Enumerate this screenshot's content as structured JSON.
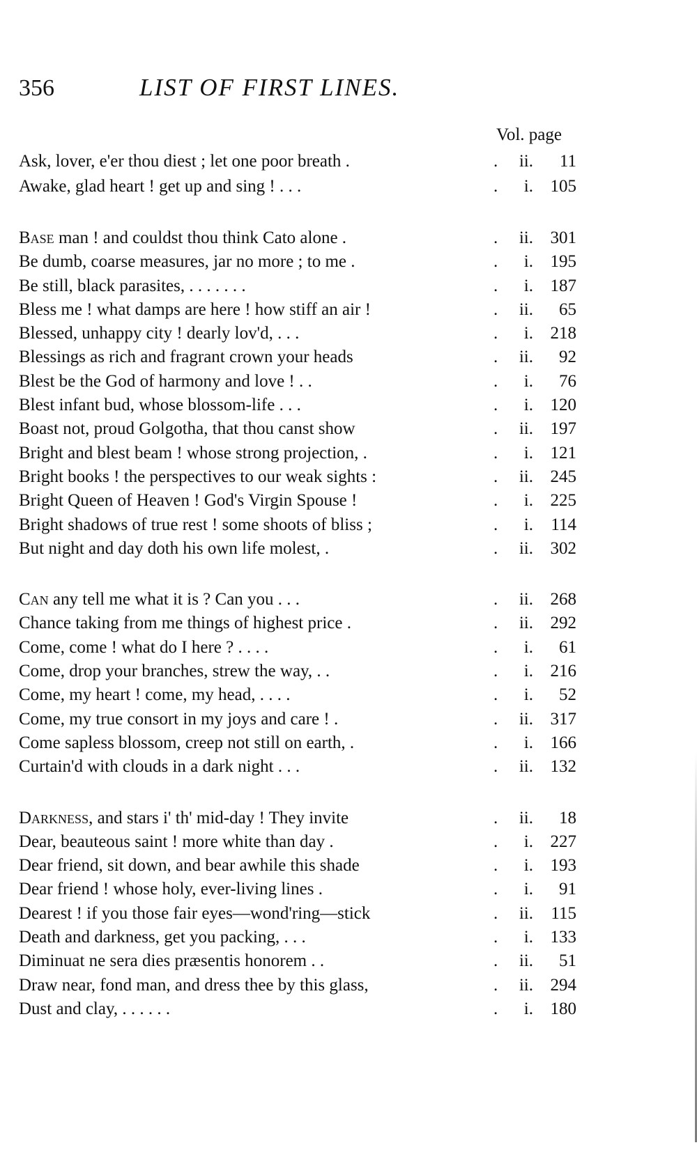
{
  "header": {
    "page_number": "356",
    "title": "LIST OF FIRST LINES."
  },
  "column_header": "Vol. page",
  "groups": [
    [
      {
        "line": "Ask, lover, e'er thou diest ; let one poor breath  .",
        "vol": "ii.",
        "page": "11"
      },
      {
        "line": "Awake, glad heart ! get up and sing !  .      .      .",
        "vol": "i.",
        "page": "105"
      }
    ],
    [
      {
        "line": "Base man ! and couldst thou think Cato alone   .",
        "vol": "ii.",
        "page": "301"
      },
      {
        "line": "Be dumb, coarse measures, jar no more ; to me  .",
        "vol": "i.",
        "page": "195"
      },
      {
        "line": "Be still, black parasites, .      .      .      .      .      .      .",
        "vol": "i.",
        "page": "187"
      },
      {
        "line": "Bless me ! what damps are here ! how stiff an air !",
        "vol": "ii.",
        "page": "65"
      },
      {
        "line": "Blessed, unhappy city ! dearly lov'd,  .      .      .",
        "vol": "i.",
        "page": "218"
      },
      {
        "line": "Blessings as rich and fragrant crown your heads",
        "vol": "ii.",
        "page": "92"
      },
      {
        "line": "Blest be the God of harmony and love !     .      .",
        "vol": "i.",
        "page": "76"
      },
      {
        "line": "Blest infant bud, whose blossom-life   .      .      .",
        "vol": "i.",
        "page": "120"
      },
      {
        "line": "Boast not, proud Golgotha, that thou canst show",
        "vol": "ii.",
        "page": "197"
      },
      {
        "line": "Bright and blest beam ! whose strong projection, .",
        "vol": "i.",
        "page": "121"
      },
      {
        "line": "Bright books ! the perspectives to our weak sights :",
        "vol": "ii.",
        "page": "245"
      },
      {
        "line": "Bright Queen of Heaven ! God's Virgin Spouse !",
        "vol": "i.",
        "page": "225"
      },
      {
        "line": "Bright shadows of true rest ! some shoots of bliss ;",
        "vol": "i.",
        "page": "114"
      },
      {
        "line": "But night and day doth his own life molest,       .",
        "vol": "ii.",
        "page": "302"
      }
    ],
    [
      {
        "line": "Can any tell me what it is ?  Can you .      .      .",
        "vol": "ii.",
        "page": "268"
      },
      {
        "line": "Chance taking from me things of highest price   .",
        "vol": "ii.",
        "page": "292"
      },
      {
        "line": "Come, come ! what do I here ?     .      .      .      .",
        "vol": "i.",
        "page": "61"
      },
      {
        "line": "Come, drop your branches, strew the way,  .      .",
        "vol": "i.",
        "page": "216"
      },
      {
        "line": "Come, my heart ! come, my head, .      .      .      .",
        "vol": "i.",
        "page": "52"
      },
      {
        "line": "Come, my true consort in my joys and care !     .",
        "vol": "ii.",
        "page": "317"
      },
      {
        "line": "Come sapless blossom, creep not still on earth,   .",
        "vol": "i.",
        "page": "166"
      },
      {
        "line": "Curtain'd with clouds in a dark night  .      .      .",
        "vol": "ii.",
        "page": "132"
      }
    ],
    [
      {
        "line": "Darkness, and stars i' th' mid-day !  They invite",
        "vol": "ii.",
        "page": "18"
      },
      {
        "line": "Dear, beauteous saint ! more white than day     .",
        "vol": "i.",
        "page": "227"
      },
      {
        "line": "Dear friend, sit down, and bear awhile this shade",
        "vol": "i.",
        "page": "193"
      },
      {
        "line": "Dear friend ! whose holy, ever-living lines  .",
        "vol": "i.",
        "page": "91"
      },
      {
        "line": "Dearest ! if you those fair eyes—wond'ring—stick",
        "vol": "ii.",
        "page": "115"
      },
      {
        "line": "Death and darkness, get you packing,  .      .      .",
        "vol": "i.",
        "page": "133"
      },
      {
        "line": "Diminuat ne sera dies præsentis honorem    .      .",
        "vol": "ii.",
        "page": "51"
      },
      {
        "line": "Draw near, fond man, and dress thee by this glass,",
        "vol": "ii.",
        "page": "294"
      },
      {
        "line": "Dust and clay,      .      .      .      .             .      .",
        "vol": "i.",
        "page": "180"
      }
    ]
  ]
}
